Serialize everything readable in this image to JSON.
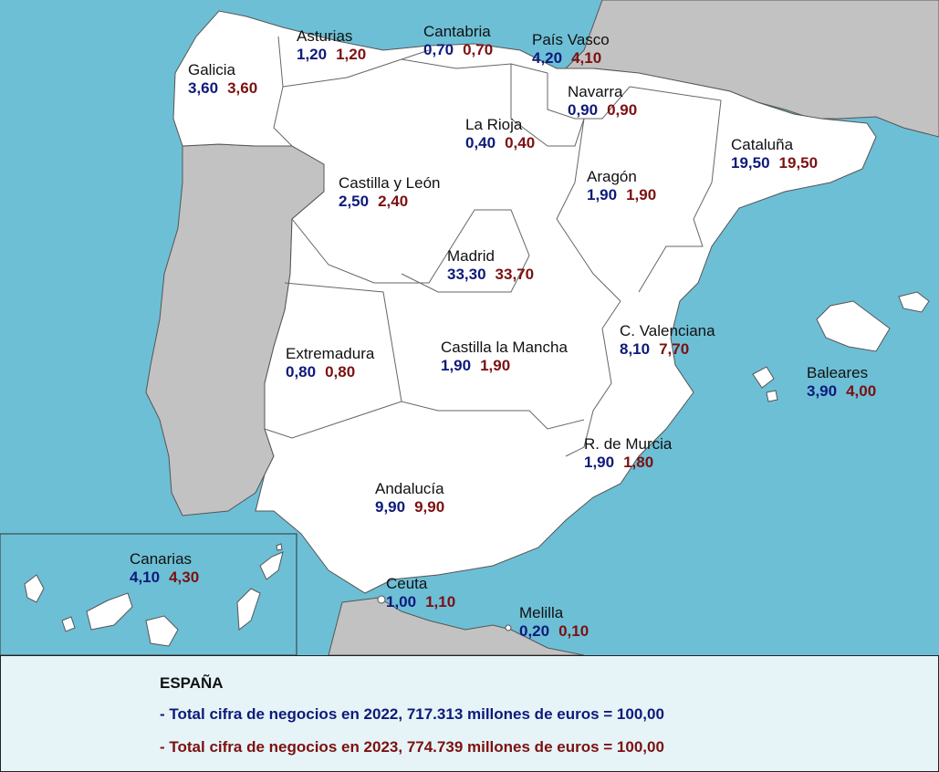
{
  "colors": {
    "sea": "#6dbfd6",
    "land_spain": "#ffffff",
    "land_foreign": "#c2c2c2",
    "value_2022": "#0d1a7a",
    "value_2023": "#7d1010"
  },
  "regions": {
    "asturias": {
      "name": "Asturias",
      "v2022": "1,20",
      "v2023": "1,20"
    },
    "cantabria": {
      "name": "Cantabria",
      "v2022": "0,70",
      "v2023": "0,70"
    },
    "pais_vasco": {
      "name": "País Vasco",
      "v2022": "4,20",
      "v2023": "4,10"
    },
    "galicia": {
      "name": "Galicia",
      "v2022": "3,60",
      "v2023": "3,60"
    },
    "navarra": {
      "name": "Navarra",
      "v2022": "0,90",
      "v2023": "0,90"
    },
    "la_rioja": {
      "name": "La Rioja",
      "v2022": "0,40",
      "v2023": "0,40"
    },
    "cataluna": {
      "name": "Cataluña",
      "v2022": "19,50",
      "v2023": "19,50"
    },
    "castilla_leon": {
      "name": "Castilla y León",
      "v2022": "2,50",
      "v2023": "2,40"
    },
    "aragon": {
      "name": "Aragón",
      "v2022": "1,90",
      "v2023": "1,90"
    },
    "madrid": {
      "name": "Madrid",
      "v2022": "33,30",
      "v2023": "33,70"
    },
    "c_valenciana": {
      "name": "C. Valenciana",
      "v2022": "8,10",
      "v2023": "7,70"
    },
    "extremadura": {
      "name": "Extremadura",
      "v2022": "0,80",
      "v2023": "0,80"
    },
    "castilla_la_mancha": {
      "name": "Castilla la Mancha",
      "v2022": "1,90",
      "v2023": "1,90"
    },
    "baleares": {
      "name": "Baleares",
      "v2022": "3,90",
      "v2023": "4,00"
    },
    "murcia": {
      "name": "R. de Murcia",
      "v2022": "1,90",
      "v2023": "1,80"
    },
    "andalucia": {
      "name": "Andalucía",
      "v2022": "9,90",
      "v2023": "9,90"
    },
    "canarias": {
      "name": "Canarias",
      "v2022": "4,10",
      "v2023": "4,30"
    },
    "ceuta": {
      "name": "Ceuta",
      "v2022": "1,00",
      "v2023": "1,10"
    },
    "melilla": {
      "name": "Melilla",
      "v2022": "0,20",
      "v2023": "0,10"
    }
  },
  "legend": {
    "title": "ESPAÑA",
    "line_2022": "- Total cifra de negocios en 2022, 717.313 millones de euros = 100,00",
    "line_2023": "- Total cifra de negocios en 2023, 774.739 millones de euros = 100,00"
  }
}
